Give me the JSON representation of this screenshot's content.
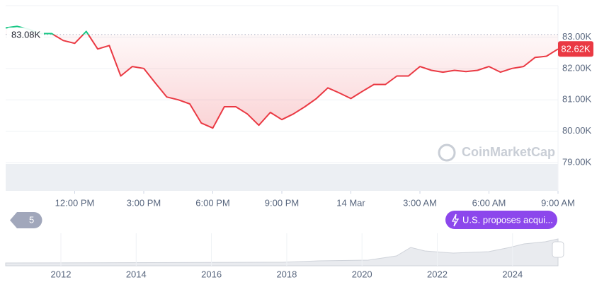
{
  "chart_data": {
    "type": "line",
    "x": [
      9,
      9.5,
      10,
      10.5,
      11,
      11.5,
      12,
      12.5,
      13,
      13.5,
      14,
      14.5,
      15,
      15.5,
      16,
      16.5,
      17,
      17.5,
      18,
      18.5,
      19,
      19.5,
      20,
      20.5,
      21,
      21.5,
      22,
      22.5,
      23,
      23.5,
      24,
      24.5,
      25,
      25.5,
      26,
      26.5,
      27,
      27.5,
      28,
      28.5,
      29,
      29.5,
      30,
      30.5,
      31,
      31.5,
      32,
      32.5,
      33
    ],
    "series": [
      {
        "color": "#ea3943",
        "values": [
          83290,
          83340,
          83250,
          83110,
          83110,
          82890,
          82800,
          83180,
          82620,
          82730,
          81760,
          82060,
          82000,
          81540,
          81090,
          81000,
          80870,
          80260,
          80100,
          80780,
          80780,
          80550,
          80190,
          80600,
          80370,
          80550,
          80780,
          81040,
          81380,
          81220,
          81040,
          81270,
          81490,
          81490,
          81760,
          81760,
          82060,
          81940,
          81880,
          81940,
          81900,
          81940,
          82060,
          81880,
          82000,
          82060,
          82350,
          82390,
          82620
        ]
      }
    ],
    "above_color": "#16c784",
    "baseline": {
      "value": 83080,
      "label": "83.08K"
    },
    "price_label": {
      "value": 82620,
      "label": "82.62K"
    },
    "xlim": [
      9,
      33
    ],
    "xticks": [
      {
        "value": 12,
        "label": "12:00 PM"
      },
      {
        "value": 15,
        "label": "3:00 PM"
      },
      {
        "value": 18,
        "label": "6:00 PM"
      },
      {
        "value": 21,
        "label": "9:00 PM"
      },
      {
        "value": 24,
        "label": "14 Mar"
      },
      {
        "value": 27,
        "label": "3:00 AM"
      },
      {
        "value": 30,
        "label": "6:00 AM"
      },
      {
        "value": 33,
        "label": "9:00 AM"
      }
    ],
    "ylim": [
      78100,
      84000
    ],
    "yticks": [
      {
        "value": 79000,
        "label": "79.00K"
      },
      {
        "value": 80000,
        "label": "80.00K"
      },
      {
        "value": 81000,
        "label": "81.00K"
      },
      {
        "value": 82000,
        "label": "82.00K"
      },
      {
        "value": 83000,
        "label": "83.00K"
      }
    ],
    "grid": true
  },
  "watermark": "CoinMarketCap",
  "history_badge": "5",
  "event_pill": "U.S. proposes acqui...",
  "navigator": {
    "years": [
      "2012",
      "2014",
      "2016",
      "2018",
      "2020",
      "2022",
      "2024"
    ]
  }
}
